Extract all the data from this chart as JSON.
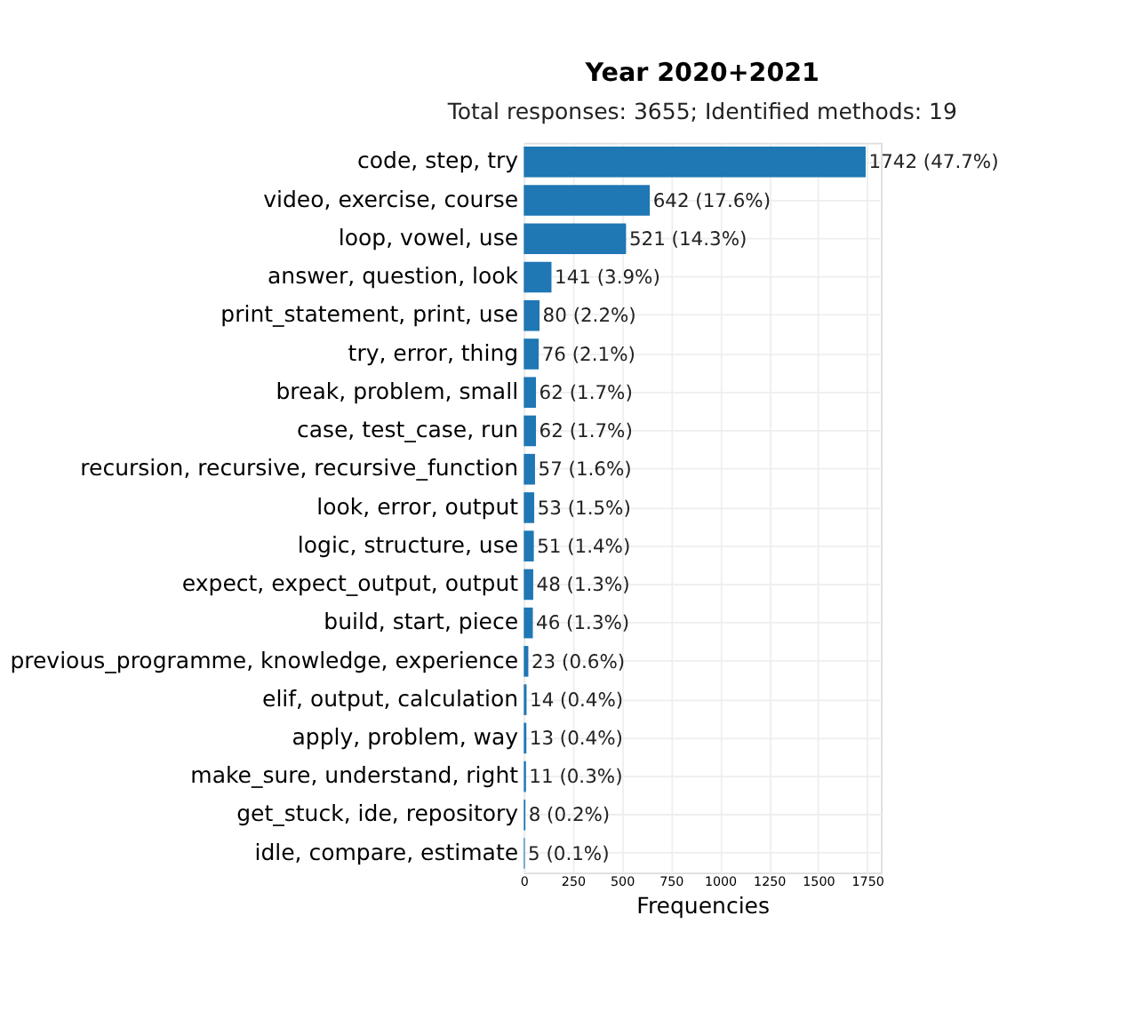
{
  "chart_data": {
    "type": "bar",
    "orientation": "horizontal",
    "title": "Year 2020+2021",
    "subtitle": "Total responses: 3655; Identified methods: 19",
    "xlabel": "Frequencies",
    "categories": [
      "code, step, try",
      "video, exercise, course",
      "loop, vowel, use",
      "answer, question, look",
      "print_statement, print, use",
      "try, error, thing",
      "break, problem, small",
      "case, test_case, run",
      "recursion, recursive, recursive_function",
      "look, error, output",
      "logic, structure, use",
      "expect, expect_output, output",
      "build, start, piece",
      "previous_programme, knowledge, experience",
      "elif, output, calculation",
      "apply, problem, way",
      "make_sure, understand, right",
      "get_stuck, ide, repository",
      "idle, compare, estimate"
    ],
    "values": [
      1742,
      642,
      521,
      141,
      80,
      76,
      62,
      62,
      57,
      53,
      51,
      48,
      46,
      23,
      14,
      13,
      11,
      8,
      5
    ],
    "value_labels": [
      "1742 (47.7%)",
      "642 (17.6%)",
      "521 (14.3%)",
      "141 (3.9%)",
      "80 (2.2%)",
      "76 (2.1%)",
      "62 (1.7%)",
      "62 (1.7%)",
      "57 (1.6%)",
      "53 (1.5%)",
      "51 (1.4%)",
      "48 (1.3%)",
      "46 (1.3%)",
      "23 (0.6%)",
      "14 (0.4%)",
      "13 (0.4%)",
      "11 (0.3%)",
      "8 (0.2%)",
      "5 (0.1%)"
    ],
    "color": "#1f77b4",
    "xlim": [
      0,
      1820
    ],
    "xticks": [
      0,
      250,
      500,
      750,
      1000,
      1250,
      1500,
      1750
    ],
    "grid": true
  }
}
